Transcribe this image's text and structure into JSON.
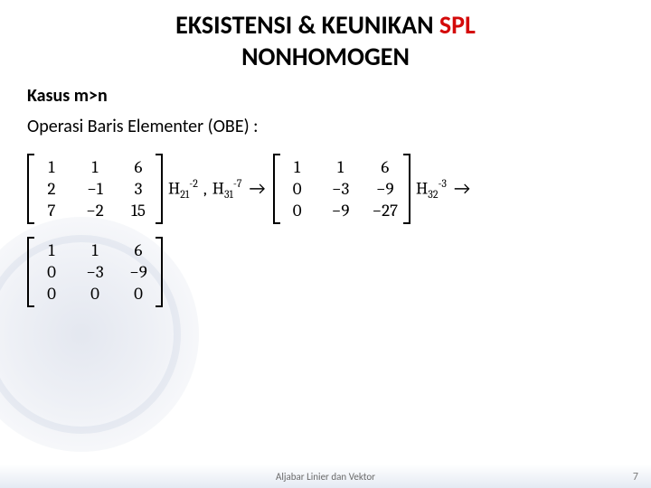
{
  "title": {
    "part1": "EKSISTENSI & KEUNIKAN ",
    "part_red": "SPL",
    "line2": "NONHOMOGEN"
  },
  "subheading": "Kasus m>n",
  "obe_label": "Operasi Baris Elementer (OBE) :",
  "matrices": {
    "m1": [
      [
        "1",
        "1",
        "6"
      ],
      [
        "2",
        "−1",
        "3"
      ],
      [
        "7",
        "−2",
        "15"
      ]
    ],
    "m2": [
      [
        "1",
        "1",
        "6"
      ],
      [
        "0",
        "−3",
        "−9"
      ],
      [
        "0",
        "−9",
        "−27"
      ]
    ],
    "m3": [
      [
        "1",
        "1",
        "6"
      ],
      [
        "0",
        "−3",
        "−9"
      ],
      [
        "0",
        "0",
        "0"
      ]
    ]
  },
  "ops": {
    "op1a": {
      "base": "H",
      "sub": "21",
      "sup": "-2"
    },
    "op1b": {
      "base": "H",
      "sub": "31",
      "sup": "-7"
    },
    "op2": {
      "base": "H",
      "sub": "32",
      "sup": "-3"
    }
  },
  "comma": ",",
  "arrow": "→",
  "footer": "Aljabar Linier dan Vektor",
  "page": "7",
  "style": {
    "title_fontsize": 28,
    "title_color": "#000000",
    "title_red_color": "#d40a0a",
    "body_fontsize": 19,
    "footer_fontsize": 11,
    "footer_color": "#6a6a6a",
    "background": "#ffffff",
    "matrix_cols": 3,
    "matrix_rows": 3
  }
}
